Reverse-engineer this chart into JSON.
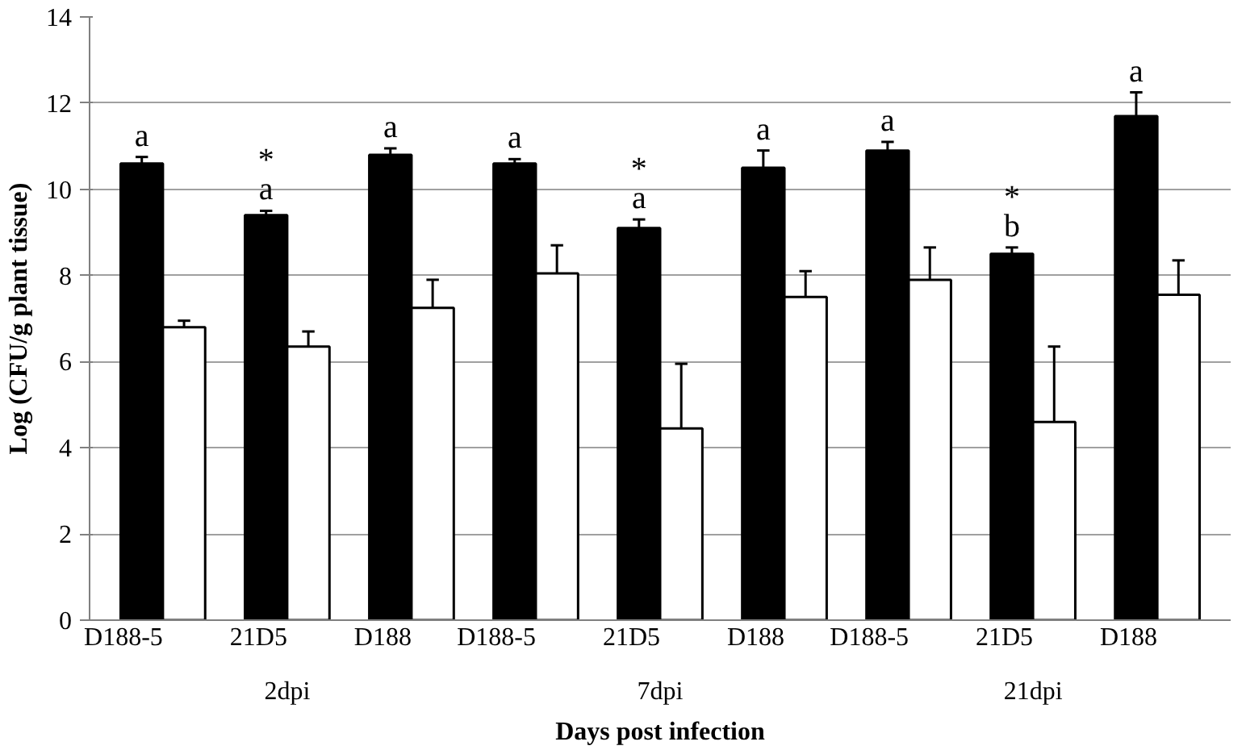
{
  "chart_data": {
    "type": "bar",
    "xlabel": "Days post infection",
    "ylabel": "Log (CFU/g plant tissue)",
    "categories": [
      "D188-5",
      "21D5",
      "D188",
      "D188-5",
      "21D5",
      "D188",
      "D188-5",
      "21D5",
      "D188"
    ],
    "annotations": [
      "2dpi",
      "7dpi",
      "21dpi"
    ],
    "series": [
      {
        "color": "#000000",
        "values": [
          10.6,
          9.4,
          10.8,
          10.6,
          9.1,
          10.5,
          10.9,
          8.5,
          11.7
        ],
        "errors": [
          [
            10.6,
            10.75
          ],
          [
            9.4,
            9.5
          ],
          [
            10.8,
            10.95
          ],
          [
            10.6,
            10.7
          ],
          [
            9.1,
            9.3
          ],
          [
            10.5,
            10.9
          ],
          [
            10.9,
            11.1
          ],
          [
            8.5,
            8.65
          ],
          [
            11.7,
            12.25
          ]
        ],
        "value_labels": [
          "a",
          "*\na",
          "a",
          "a",
          "*\na",
          "a",
          "a",
          "*\nb",
          "a"
        ]
      },
      {
        "color": "#ffffff",
        "values": [
          6.8,
          6.35,
          7.25,
          8.05,
          4.45,
          7.5,
          7.9,
          4.6,
          7.55
        ],
        "errors": [
          [
            6.8,
            6.95
          ],
          [
            6.35,
            6.7
          ],
          [
            7.25,
            7.9
          ],
          [
            8.05,
            8.7
          ],
          [
            4.45,
            5.95
          ],
          [
            7.5,
            8.1
          ],
          [
            7.9,
            8.65
          ],
          [
            4.6,
            6.35
          ],
          [
            7.55,
            8.35
          ]
        ]
      }
    ],
    "ylim": [
      0,
      14
    ],
    "yticks": [
      0,
      2,
      4,
      6,
      8,
      10,
      12,
      14
    ],
    "grid": "y"
  }
}
